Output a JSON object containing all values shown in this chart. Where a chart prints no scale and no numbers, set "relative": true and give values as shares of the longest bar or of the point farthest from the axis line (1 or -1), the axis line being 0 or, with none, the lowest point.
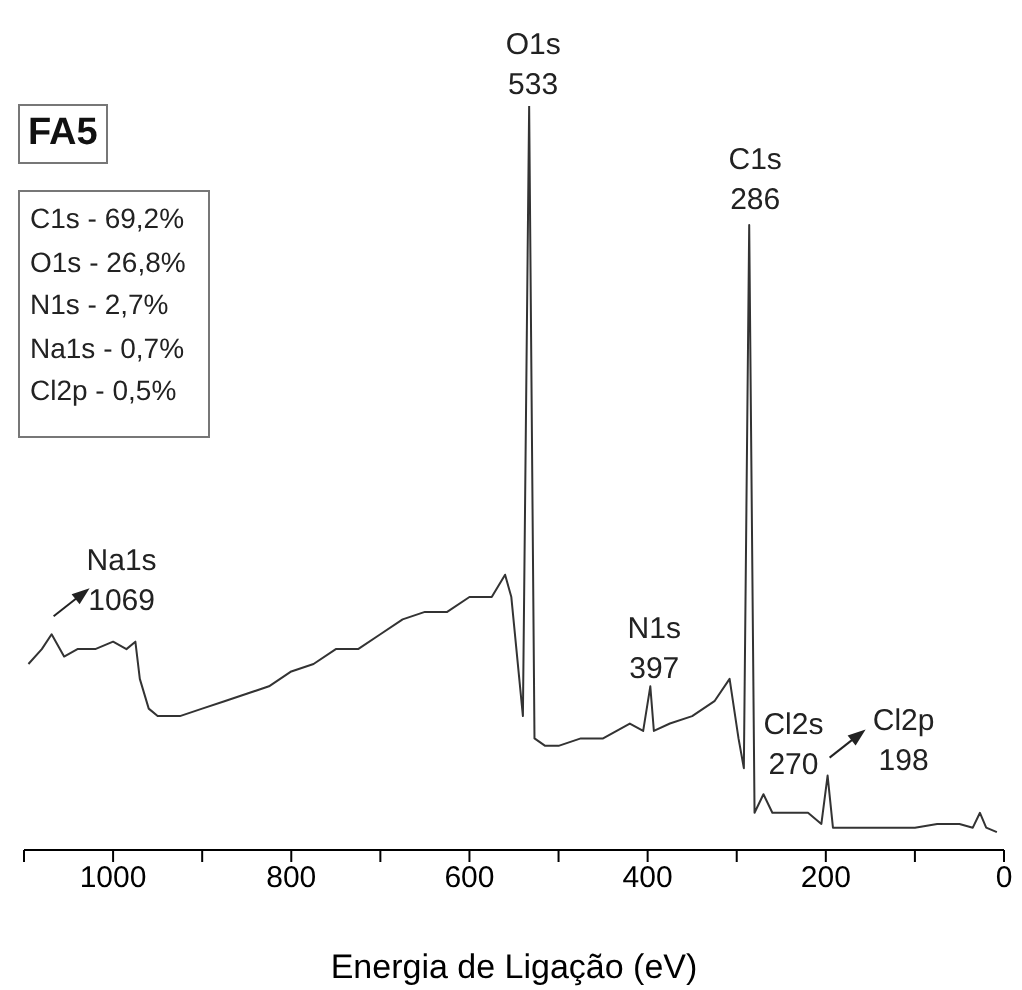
{
  "chart_data": {
    "type": "line",
    "title": "FA5",
    "xlabel": "Energia de Ligação (eV)",
    "relative": true,
    "color": "#333333",
    "marker": "none",
    "xlim": [
      1100,
      0
    ],
    "xticks": [
      {
        "value": 1100,
        "label": null
      },
      1000,
      {
        "value": 900,
        "label": null
      },
      800,
      {
        "value": 700,
        "label": null
      },
      600,
      {
        "value": 500,
        "label": null
      },
      400,
      {
        "value": 300,
        "label": null
      },
      200,
      {
        "value": 100,
        "label": null
      },
      0
    ],
    "x": [
      1095,
      1080,
      1069,
      1055,
      1040,
      1020,
      1000,
      985,
      975,
      970,
      960,
      950,
      925,
      900,
      875,
      850,
      825,
      800,
      775,
      750,
      725,
      700,
      675,
      650,
      625,
      600,
      575,
      560,
      553,
      540,
      533,
      527,
      515,
      500,
      475,
      450,
      420,
      405,
      397,
      393,
      375,
      350,
      325,
      308,
      298,
      292,
      286,
      280,
      270,
      260,
      240,
      220,
      205,
      198,
      192,
      170,
      150,
      125,
      100,
      75,
      50,
      35,
      27,
      20,
      8
    ],
    "values": [
      0.25,
      0.27,
      0.29,
      0.26,
      0.27,
      0.27,
      0.28,
      0.27,
      0.28,
      0.23,
      0.19,
      0.18,
      0.18,
      0.19,
      0.2,
      0.21,
      0.22,
      0.24,
      0.25,
      0.27,
      0.27,
      0.29,
      0.31,
      0.32,
      0.32,
      0.34,
      0.34,
      0.37,
      0.34,
      0.18,
      1,
      0.15,
      0.14,
      0.14,
      0.15,
      0.15,
      0.17,
      0.16,
      0.22,
      0.16,
      0.17,
      0.18,
      0.2,
      0.23,
      0.15,
      0.11,
      0.84,
      0.05,
      0.075,
      0.05,
      0.05,
      0.05,
      0.035,
      0.1,
      0.03,
      0.03,
      0.03,
      0.03,
      0.03,
      0.035,
      0.035,
      0.03,
      0.05,
      0.03,
      0.024
    ],
    "annotations": [
      {
        "text": "O1s\n533",
        "x": 533,
        "y": 1
      },
      {
        "text": "C1s\n286",
        "x": 286,
        "y": 0.84
      },
      {
        "text": "N1s\n397",
        "x": 397,
        "y": 0.22
      },
      {
        "text": "Cl2s\n270",
        "x": 270,
        "y": 0.075
      },
      {
        "text": "Na1s\n1069",
        "x": 1069,
        "y": 0.29
      },
      {
        "text": "Cl2p\n198",
        "x": 198,
        "y": 0.1
      },
      "C1s - 69,2%",
      "O1s - 26,8%",
      "N1s - 2,7%",
      "Na1s - 0,7%",
      "Cl2p - 0,5%"
    ]
  }
}
